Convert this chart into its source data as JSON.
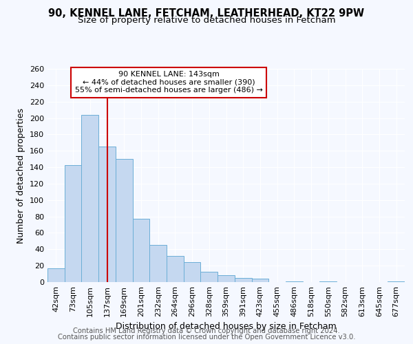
{
  "title1": "90, KENNEL LANE, FETCHAM, LEATHERHEAD, KT22 9PW",
  "title2": "Size of property relative to detached houses in Fetcham",
  "xlabel": "Distribution of detached houses by size in Fetcham",
  "ylabel": "Number of detached properties",
  "footer1": "Contains HM Land Registry data © Crown copyright and database right 2024.",
  "footer2": "Contains public sector information licensed under the Open Government Licence v3.0.",
  "annotation_title": "90 KENNEL LANE: 143sqm",
  "annotation_line1": "← 44% of detached houses are smaller (390)",
  "annotation_line2": "55% of semi-detached houses are larger (486) →",
  "bar_labels": [
    "42sqm",
    "73sqm",
    "105sqm",
    "137sqm",
    "169sqm",
    "201sqm",
    "232sqm",
    "264sqm",
    "296sqm",
    "328sqm",
    "359sqm",
    "391sqm",
    "423sqm",
    "455sqm",
    "486sqm",
    "518sqm",
    "550sqm",
    "582sqm",
    "613sqm",
    "645sqm",
    "677sqm"
  ],
  "bar_values": [
    17,
    143,
    204,
    165,
    150,
    77,
    45,
    32,
    24,
    13,
    8,
    5,
    4,
    0,
    1,
    0,
    1,
    0,
    0,
    0,
    1
  ],
  "bar_color": "#c5d8f0",
  "bar_edge_color": "#6baed6",
  "marker_color": "#cc0000",
  "marker_bin_index": 3,
  "ylim": [
    0,
    260
  ],
  "yticks": [
    0,
    20,
    40,
    60,
    80,
    100,
    120,
    140,
    160,
    180,
    200,
    220,
    240,
    260
  ],
  "background_color": "#f5f8ff",
  "grid_color": "#ffffff",
  "title_fontsize": 10.5,
  "subtitle_fontsize": 9.5,
  "axis_label_fontsize": 9,
  "tick_fontsize": 8,
  "footer_fontsize": 7.2
}
